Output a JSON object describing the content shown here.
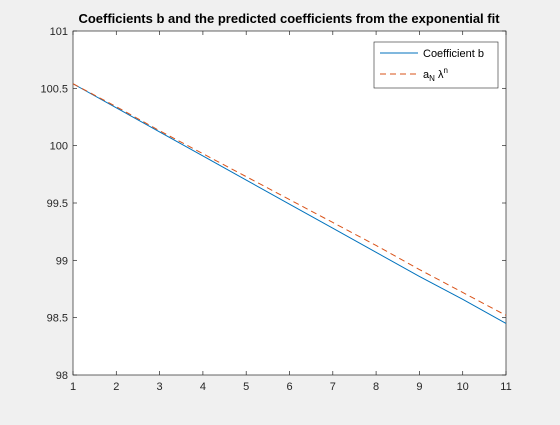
{
  "chart_data": {
    "type": "line",
    "title": "Coefficients b and the predicted coefficients from the exponential fit",
    "xlabel": "",
    "ylabel": "",
    "xlim": [
      1,
      11
    ],
    "ylim": [
      98,
      101
    ],
    "xticks": [
      1,
      2,
      3,
      4,
      5,
      6,
      7,
      8,
      9,
      10,
      11
    ],
    "yticks": [
      98,
      98.5,
      99,
      99.5,
      100,
      100.5,
      101
    ],
    "ytick_labels": [
      "98",
      "98.5",
      "99",
      "99.5",
      "100",
      "100.5",
      "101"
    ],
    "grid": false,
    "legend_position": "top-right",
    "series": [
      {
        "name": "Coefficient b",
        "color": "#0072bd",
        "line_style": "solid",
        "x": [
          1,
          2,
          3,
          4,
          5,
          6,
          7,
          8,
          9,
          10,
          11
        ],
        "values": [
          100.54,
          100.33,
          100.12,
          99.91,
          99.7,
          99.49,
          99.28,
          99.07,
          98.86,
          98.66,
          98.45
        ]
      },
      {
        "name": "a_N λ^n",
        "color": "#d95319",
        "line_style": "dashed",
        "x": [
          1,
          2,
          3,
          4,
          5,
          6,
          7,
          8,
          9,
          10,
          11
        ],
        "values": [
          100.54,
          100.34,
          100.13,
          99.93,
          99.73,
          99.53,
          99.33,
          99.13,
          98.92,
          98.72,
          98.52
        ]
      }
    ]
  },
  "legend": {
    "label_1": "Coefficient b",
    "label_2_base": "a",
    "label_2_sub": "N",
    "label_2_mid": " λ",
    "label_2_sup": "n"
  }
}
